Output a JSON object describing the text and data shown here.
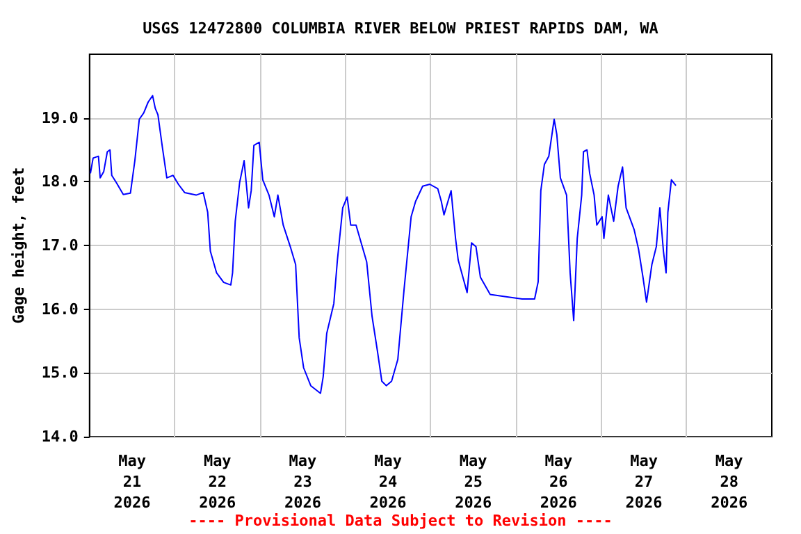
{
  "chart_data": {
    "type": "line",
    "title": "USGS 12472800 COLUMBIA RIVER BELOW PRIEST RAPIDS DAM, WA",
    "ylabel": "Gage height, feet",
    "annotations": [
      "---- Provisional Data Subject to Revision ----"
    ],
    "x": [
      "2026-05-21T00:15",
      "2026-05-21T01:00",
      "2026-05-21T02:30",
      "2026-05-21T03:00",
      "2026-05-21T04:00",
      "2026-05-21T05:00",
      "2026-05-21T05:45",
      "2026-05-21T06:15",
      "2026-05-21T07:30",
      "2026-05-21T09:30",
      "2026-05-21T11:30",
      "2026-05-21T12:45",
      "2026-05-21T14:00",
      "2026-05-21T15:15",
      "2026-05-21T16:30",
      "2026-05-21T17:45",
      "2026-05-21T18:30",
      "2026-05-21T19:15",
      "2026-05-21T20:30",
      "2026-05-21T21:45",
      "2026-05-21T23:30",
      "2026-05-22T01:00",
      "2026-05-22T02:45",
      "2026-05-22T06:00",
      "2026-05-22T08:00",
      "2026-05-22T09:15",
      "2026-05-22T10:00",
      "2026-05-22T11:45",
      "2026-05-22T13:45",
      "2026-05-22T15:45",
      "2026-05-22T16:15",
      "2026-05-22T17:00",
      "2026-05-22T18:15",
      "2026-05-22T19:30",
      "2026-05-22T20:45",
      "2026-05-22T21:30",
      "2026-05-22T22:15",
      "2026-05-22T23:45",
      "2026-05-23T00:45",
      "2026-05-23T02:30",
      "2026-05-23T04:00",
      "2026-05-23T05:00",
      "2026-05-23T06:30",
      "2026-05-23T08:30",
      "2026-05-23T10:00",
      "2026-05-23T11:00",
      "2026-05-23T12:15",
      "2026-05-23T14:15",
      "2026-05-23T17:00",
      "2026-05-23T17:45",
      "2026-05-23T18:45",
      "2026-05-23T20:45",
      "2026-05-23T21:45",
      "2026-05-23T23:15",
      "2026-05-24T00:30",
      "2026-05-24T01:30",
      "2026-05-24T03:00",
      "2026-05-24T06:00",
      "2026-05-24T07:30",
      "2026-05-24T09:00",
      "2026-05-24T10:15",
      "2026-05-24T11:30",
      "2026-05-24T13:00",
      "2026-05-24T14:45",
      "2026-05-24T16:30",
      "2026-05-24T18:30",
      "2026-05-24T19:45",
      "2026-05-24T21:45",
      "2026-05-24T23:45",
      "2026-05-25T02:00",
      "2026-05-25T03:00",
      "2026-05-25T03:45",
      "2026-05-25T05:45",
      "2026-05-25T07:00",
      "2026-05-25T07:45",
      "2026-05-25T10:15",
      "2026-05-25T11:30",
      "2026-05-25T12:45",
      "2026-05-25T14:00",
      "2026-05-25T16:45",
      "2026-05-25T20:30",
      "2026-05-26T01:45",
      "2026-05-26T05:15",
      "2026-05-26T06:15",
      "2026-05-26T07:00",
      "2026-05-26T08:00",
      "2026-05-26T09:15",
      "2026-05-26T10:45",
      "2026-05-26T11:30",
      "2026-05-26T12:30",
      "2026-05-26T14:15",
      "2026-05-26T15:15",
      "2026-05-26T16:15",
      "2026-05-26T17:15",
      "2026-05-26T18:30",
      "2026-05-26T19:00",
      "2026-05-26T20:00",
      "2026-05-26T20:45",
      "2026-05-26T22:00",
      "2026-05-26T22:45",
      "2026-05-27T00:15",
      "2026-05-27T00:45",
      "2026-05-27T02:00",
      "2026-05-27T03:30",
      "2026-05-27T04:45",
      "2026-05-27T06:00",
      "2026-05-27T07:00",
      "2026-05-27T09:15",
      "2026-05-27T10:30",
      "2026-05-27T11:45",
      "2026-05-27T12:45",
      "2026-05-27T14:15",
      "2026-05-27T15:30",
      "2026-05-27T16:30",
      "2026-05-27T17:30",
      "2026-05-27T18:15",
      "2026-05-27T18:45",
      "2026-05-27T19:45",
      "2026-05-27T21:00"
    ],
    "series": [
      {
        "color": "#0000ff",
        "values": [
          18.13,
          18.37,
          18.4,
          18.06,
          18.16,
          18.47,
          18.5,
          18.1,
          17.99,
          17.8,
          17.82,
          18.33,
          18.98,
          19.08,
          19.25,
          19.35,
          19.15,
          19.05,
          18.54,
          18.06,
          18.1,
          17.96,
          17.83,
          17.79,
          17.83,
          17.52,
          16.91,
          16.57,
          16.42,
          16.38,
          16.57,
          17.38,
          17.99,
          18.33,
          17.59,
          17.86,
          18.57,
          18.62,
          18.03,
          17.79,
          17.45,
          17.79,
          17.32,
          16.98,
          16.7,
          15.55,
          15.08,
          14.8,
          14.68,
          14.94,
          15.62,
          16.09,
          16.77,
          17.59,
          17.76,
          17.32,
          17.32,
          16.74,
          15.89,
          15.35,
          14.87,
          14.8,
          14.87,
          15.21,
          16.3,
          17.45,
          17.69,
          17.93,
          17.96,
          17.89,
          17.69,
          17.48,
          17.86,
          17.11,
          16.77,
          16.26,
          17.04,
          16.98,
          16.5,
          16.23,
          16.2,
          16.16,
          16.16,
          16.43,
          17.86,
          18.27,
          18.4,
          18.98,
          18.74,
          18.06,
          17.79,
          16.57,
          15.82,
          17.11,
          17.79,
          18.47,
          18.5,
          18.13,
          17.79,
          17.32,
          17.45,
          17.11,
          17.79,
          17.38,
          17.93,
          18.23,
          17.59,
          17.25,
          16.94,
          16.5,
          16.11,
          16.7,
          16.98,
          17.59,
          16.91,
          16.57,
          17.52,
          18.03,
          17.94
        ]
      }
    ],
    "xlim": [
      "2026-05-21T00:00",
      "2026-05-29T00:00"
    ],
    "xticks": [
      {
        "value": "2026-05-21T12:00",
        "label": "May\n21\n2026"
      },
      {
        "value": "2026-05-22T00:00",
        "label": null
      },
      {
        "value": "2026-05-22T12:00",
        "label": "May\n22\n2026"
      },
      {
        "value": "2026-05-23T00:00",
        "label": null
      },
      {
        "value": "2026-05-23T12:00",
        "label": "May\n23\n2026"
      },
      {
        "value": "2026-05-24T00:00",
        "label": null
      },
      {
        "value": "2026-05-24T12:00",
        "label": "May\n24\n2026"
      },
      {
        "value": "2026-05-25T00:00",
        "label": null
      },
      {
        "value": "2026-05-25T12:00",
        "label": "May\n25\n2026"
      },
      {
        "value": "2026-05-26T00:00",
        "label": null
      },
      {
        "value": "2026-05-26T12:00",
        "label": "May\n26\n2026"
      },
      {
        "value": "2026-05-27T00:00",
        "label": null
      },
      {
        "value": "2026-05-27T12:00",
        "label": "May\n27\n2026"
      },
      {
        "value": "2026-05-28T00:00",
        "label": null
      },
      {
        "value": "2026-05-28T12:00",
        "label": "May\n28\n2026"
      }
    ],
    "ylim": [
      14,
      20
    ],
    "yticks": [
      {
        "value": 14,
        "label": "14.0"
      },
      {
        "value": 15,
        "label": "15.0"
      },
      {
        "value": 16,
        "label": "16.0"
      },
      {
        "value": 17,
        "label": "17.0"
      },
      {
        "value": 18,
        "label": "18.0"
      },
      {
        "value": 19,
        "label": "19.0"
      }
    ],
    "grid": true,
    "marker": "none",
    "line_style": "solid"
  }
}
